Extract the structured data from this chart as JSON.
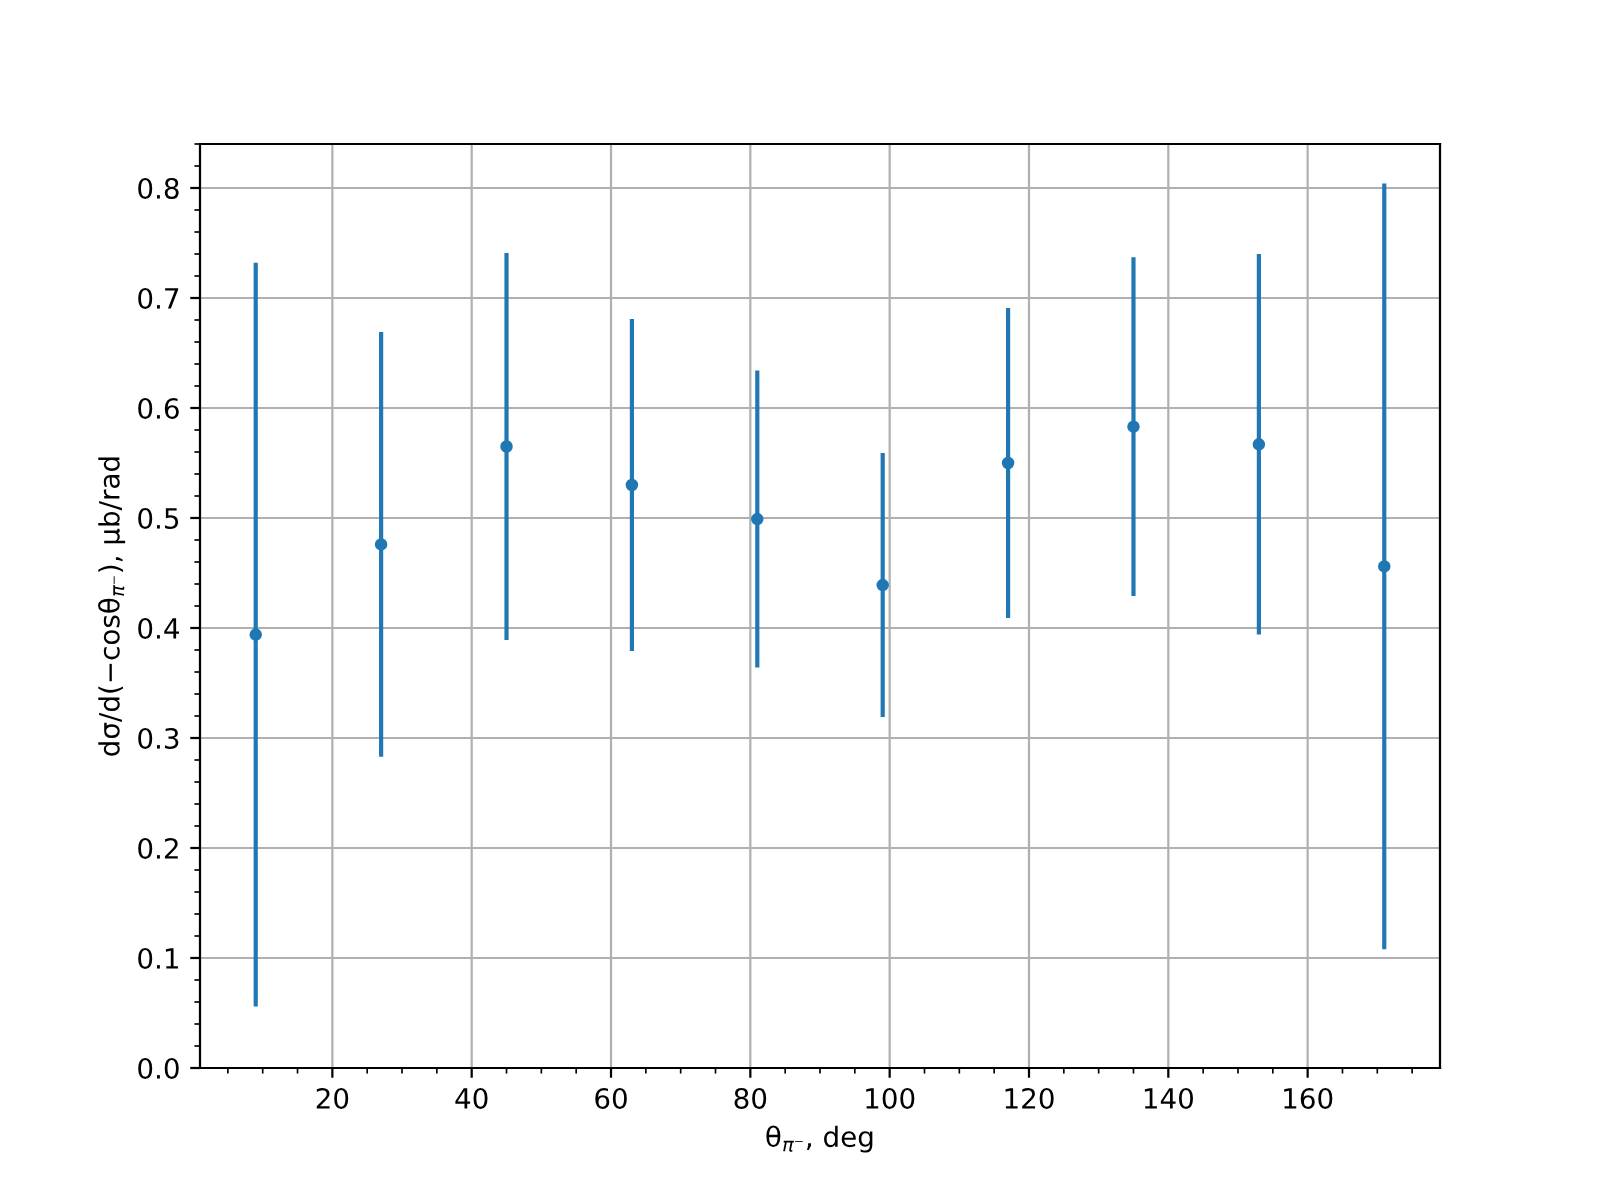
{
  "chart_data": {
    "type": "scatter",
    "xlabel": "θ$_{π⁻}$, deg",
    "ylabel": "dσ/d(−cosθ$_{π⁻}$), μb/rad",
    "x": [
      9,
      27,
      45,
      63,
      81,
      99,
      117,
      135,
      153,
      171
    ],
    "series": [
      {
        "color": "#1f77b4",
        "values": [
          0.394,
          0.476,
          0.565,
          0.53,
          0.499,
          0.439,
          0.55,
          0.583,
          0.567,
          0.456
        ],
        "errors": [
          0.338,
          0.193,
          0.176,
          0.151,
          0.135,
          0.12,
          0.141,
          0.154,
          0.173,
          0.348
        ]
      }
    ],
    "xlim": [
      1,
      179
    ],
    "xticks": [
      20,
      40,
      60,
      80,
      100,
      120,
      140,
      160
    ],
    "ylim": [
      0,
      0.84
    ],
    "yticks": [
      {
        "value": 0,
        "label": "0.0"
      },
      0.1,
      0.2,
      0.3,
      0.4,
      0.5,
      0.6,
      0.7,
      0.8
    ],
    "grid": true,
    "marker": "circle"
  }
}
